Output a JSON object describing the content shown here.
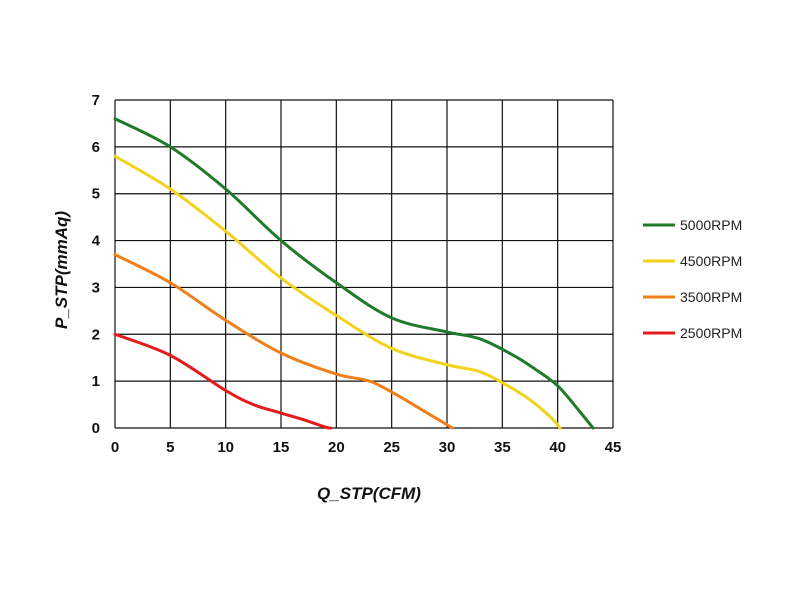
{
  "chart_data": {
    "type": "line",
    "title": "",
    "xlabel": "Q_STP(CFM)",
    "ylabel": "P_STP(mmAq)",
    "xlim": [
      0,
      45
    ],
    "ylim": [
      0,
      7
    ],
    "x_ticks": [
      "0",
      "5",
      "10",
      "15",
      "20",
      "25",
      "30",
      "35",
      "40",
      "45"
    ],
    "y_ticks": [
      "0",
      "1",
      "2",
      "3",
      "4",
      "5",
      "6",
      "7"
    ],
    "grid": true,
    "legend_position": "right",
    "series": [
      {
        "name": "5000RPM",
        "color": "#1f7a2a",
        "points": [
          [
            0,
            6.6
          ],
          [
            5,
            6.0
          ],
          [
            10,
            5.1
          ],
          [
            15,
            4.0
          ],
          [
            20,
            3.1
          ],
          [
            25,
            2.35
          ],
          [
            30,
            2.05
          ],
          [
            33,
            1.9
          ],
          [
            36,
            1.55
          ],
          [
            38,
            1.25
          ],
          [
            40,
            0.9
          ],
          [
            42,
            0.35
          ],
          [
            43.2,
            0
          ]
        ]
      },
      {
        "name": "4500RPM",
        "color": "#f2d21b",
        "points": [
          [
            0,
            5.8
          ],
          [
            5,
            5.1
          ],
          [
            10,
            4.2
          ],
          [
            15,
            3.2
          ],
          [
            20,
            2.4
          ],
          [
            25,
            1.7
          ],
          [
            30,
            1.35
          ],
          [
            33,
            1.2
          ],
          [
            35.5,
            0.9
          ],
          [
            37.5,
            0.6
          ],
          [
            39.5,
            0.2
          ],
          [
            40.2,
            0
          ]
        ]
      },
      {
        "name": "3500RPM",
        "color": "#ef7f1a",
        "points": [
          [
            0,
            3.7
          ],
          [
            5,
            3.1
          ],
          [
            10,
            2.3
          ],
          [
            15,
            1.6
          ],
          [
            20,
            1.15
          ],
          [
            23,
            1.0
          ],
          [
            25.5,
            0.7
          ],
          [
            28,
            0.35
          ],
          [
            30.5,
            0
          ]
        ]
      },
      {
        "name": "2500RPM",
        "color": "#e31b1b",
        "points": [
          [
            0,
            2.0
          ],
          [
            5,
            1.55
          ],
          [
            10,
            0.8
          ],
          [
            12.5,
            0.5
          ],
          [
            15,
            0.32
          ],
          [
            17,
            0.18
          ],
          [
            19,
            0.02
          ],
          [
            19.5,
            0
          ]
        ]
      }
    ]
  }
}
